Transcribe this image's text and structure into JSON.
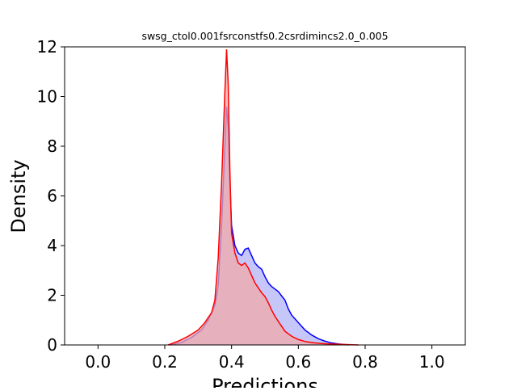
{
  "chart_data": {
    "type": "area",
    "title": "swsg_ctol0.001fsrconstfs0.2csrdimincs2.0_0.005",
    "xlabel": "Predictions",
    "ylabel": "Density",
    "xlim": [
      -0.1,
      1.1
    ],
    "ylim": [
      0,
      12
    ],
    "x_ticks": [
      "0.0",
      "0.2",
      "0.4",
      "0.6",
      "0.8",
      "1.0"
    ],
    "y_ticks": [
      "0",
      "2",
      "4",
      "6",
      "8",
      "10",
      "12"
    ],
    "grid": false,
    "legend": "none",
    "series": [
      {
        "color": "#0000ff",
        "fill": "#b3b3f5",
        "points": [
          [
            0.22,
            0.0
          ],
          [
            0.25,
            0.1
          ],
          [
            0.28,
            0.3
          ],
          [
            0.31,
            0.6
          ],
          [
            0.33,
            1.0
          ],
          [
            0.35,
            1.6
          ],
          [
            0.36,
            2.4
          ],
          [
            0.37,
            4.8
          ],
          [
            0.38,
            8.0
          ],
          [
            0.385,
            9.6
          ],
          [
            0.39,
            8.8
          ],
          [
            0.395,
            6.5
          ],
          [
            0.4,
            4.8
          ],
          [
            0.41,
            4.0
          ],
          [
            0.42,
            3.7
          ],
          [
            0.43,
            3.6
          ],
          [
            0.44,
            3.85
          ],
          [
            0.45,
            3.9
          ],
          [
            0.46,
            3.6
          ],
          [
            0.47,
            3.3
          ],
          [
            0.48,
            3.15
          ],
          [
            0.49,
            3.05
          ],
          [
            0.5,
            2.75
          ],
          [
            0.51,
            2.5
          ],
          [
            0.52,
            2.35
          ],
          [
            0.54,
            2.15
          ],
          [
            0.56,
            1.8
          ],
          [
            0.57,
            1.45
          ],
          [
            0.58,
            1.2
          ],
          [
            0.6,
            0.9
          ],
          [
            0.62,
            0.6
          ],
          [
            0.64,
            0.4
          ],
          [
            0.66,
            0.25
          ],
          [
            0.68,
            0.15
          ],
          [
            0.7,
            0.08
          ],
          [
            0.72,
            0.04
          ],
          [
            0.75,
            0.0
          ]
        ]
      },
      {
        "color": "#ff0000",
        "fill": "#f0a8a8",
        "points": [
          [
            0.21,
            0.0
          ],
          [
            0.24,
            0.15
          ],
          [
            0.27,
            0.35
          ],
          [
            0.3,
            0.6
          ],
          [
            0.32,
            0.9
          ],
          [
            0.34,
            1.3
          ],
          [
            0.35,
            1.8
          ],
          [
            0.36,
            3.5
          ],
          [
            0.37,
            6.5
          ],
          [
            0.38,
            10.2
          ],
          [
            0.385,
            11.9
          ],
          [
            0.39,
            10.5
          ],
          [
            0.395,
            7.0
          ],
          [
            0.4,
            4.5
          ],
          [
            0.41,
            3.7
          ],
          [
            0.42,
            3.3
          ],
          [
            0.43,
            3.2
          ],
          [
            0.44,
            3.3
          ],
          [
            0.45,
            3.1
          ],
          [
            0.46,
            2.8
          ],
          [
            0.47,
            2.5
          ],
          [
            0.48,
            2.3
          ],
          [
            0.49,
            2.1
          ],
          [
            0.5,
            1.95
          ],
          [
            0.51,
            1.7
          ],
          [
            0.52,
            1.4
          ],
          [
            0.53,
            1.15
          ],
          [
            0.54,
            0.95
          ],
          [
            0.55,
            0.75
          ],
          [
            0.56,
            0.55
          ],
          [
            0.58,
            0.35
          ],
          [
            0.6,
            0.22
          ],
          [
            0.62,
            0.14
          ],
          [
            0.65,
            0.08
          ],
          [
            0.68,
            0.05
          ],
          [
            0.72,
            0.03
          ],
          [
            0.76,
            0.01
          ],
          [
            0.78,
            0.0
          ]
        ]
      }
    ]
  }
}
